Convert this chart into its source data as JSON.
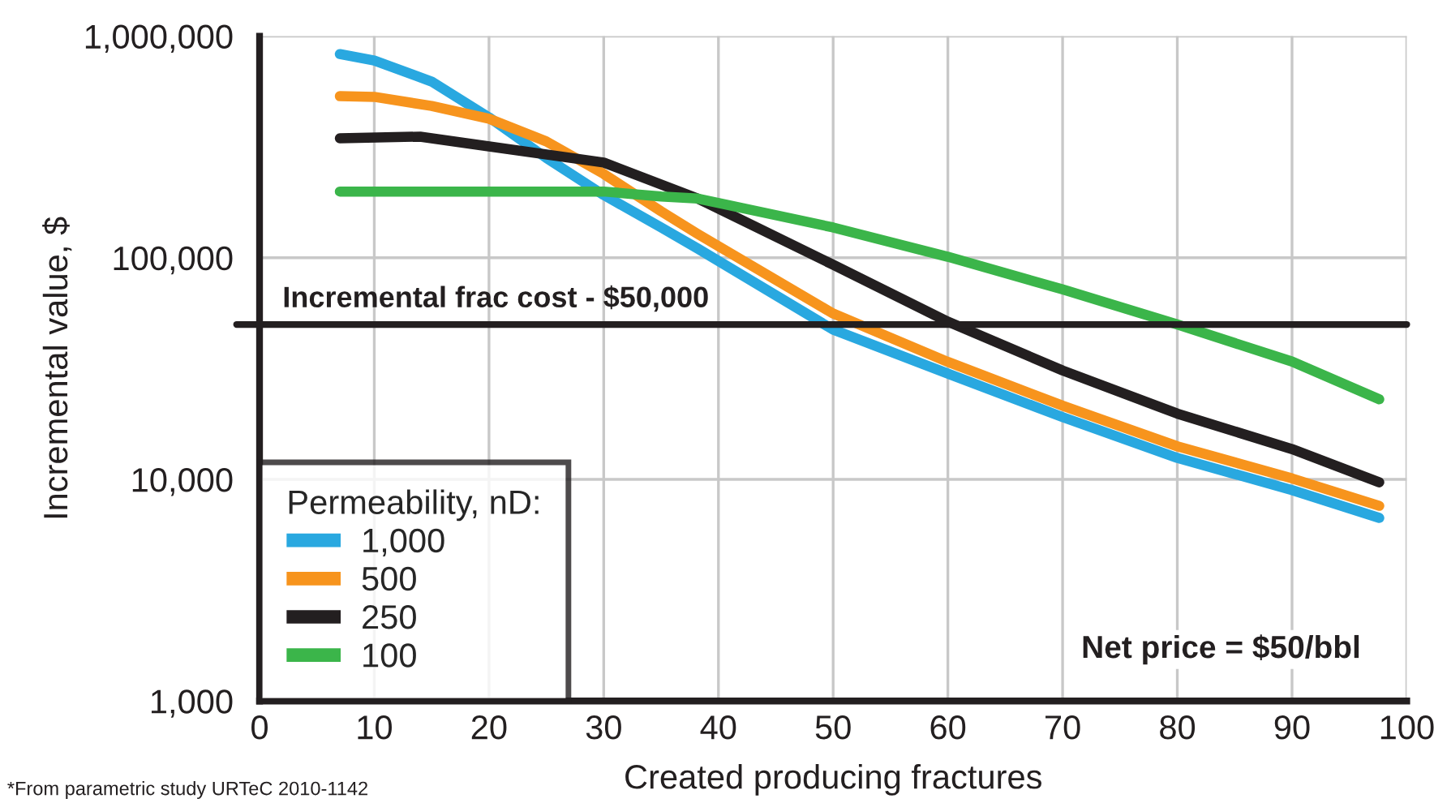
{
  "chart_data": {
    "type": "line",
    "xlabel": "Created producing fractures",
    "ylabel": "Incremental value, $",
    "legend_title": "Permeability, nD:",
    "legend": "bottom left",
    "log": true,
    "grid": true,
    "line_style": "solid",
    "marker": "none",
    "xlim": [
      0,
      100
    ],
    "xticks": [
      0,
      10,
      20,
      30,
      40,
      50,
      60,
      70,
      80,
      90,
      100
    ],
    "ylim": [
      1000,
      1000000
    ],
    "yticks": [
      {
        "value": 1000,
        "label": "1,000"
      },
      {
        "value": 10000,
        "label": "10,000"
      },
      {
        "value": 100000,
        "label": "100,000"
      },
      {
        "value": 1000000,
        "label": "1,000,000"
      }
    ],
    "series": [
      {
        "name": "1,000",
        "color": "#29a8e0",
        "x": [
          7,
          10,
          15,
          20,
          25,
          30,
          35,
          38.2,
          50,
          60,
          70,
          80,
          90,
          97.6
        ],
        "values": [
          830000,
          776000,
          624000,
          430000,
          282000,
          192000,
          137000,
          110000,
          47400,
          30000,
          19100,
          12500,
          8950,
          6700
        ]
      },
      {
        "name": "500",
        "color": "#f7941d",
        "x": [
          7,
          10,
          15,
          20,
          25,
          30,
          35,
          38.2,
          50,
          60,
          70,
          80,
          90,
          97.6
        ],
        "values": [
          536000,
          532000,
          484000,
          424000,
          335000,
          239000,
          162000,
          128000,
          56000,
          33900,
          21500,
          14100,
          10100,
          7600
        ]
      },
      {
        "name": "250",
        "color": "#231f20",
        "x": [
          7,
          14,
          20,
          30,
          38.2,
          50,
          60,
          70,
          80,
          90,
          97.6
        ],
        "values": [
          346000,
          352000,
          318000,
          269000,
          185000,
          93000,
          51500,
          31000,
          19800,
          13700,
          9700
        ]
      },
      {
        "name": "100",
        "color": "#3bb54a",
        "x": [
          7,
          20,
          30,
          35,
          38.2,
          50,
          60,
          70,
          80,
          90,
          97.6
        ],
        "values": [
          199000,
          199000,
          199000,
          189000,
          185000,
          137000,
          101000,
          72000,
          50000,
          34000,
          23000
        ]
      }
    ],
    "ref_lines": [
      {
        "axis": "y",
        "value": 50000,
        "label": "Incremental frac cost - $50,000",
        "color": "#231f20",
        "line_style": "solid"
      }
    ],
    "annotations": [
      "Net price = $50/bbl",
      "*From parametric study URTeC 2010-1142"
    ]
  }
}
